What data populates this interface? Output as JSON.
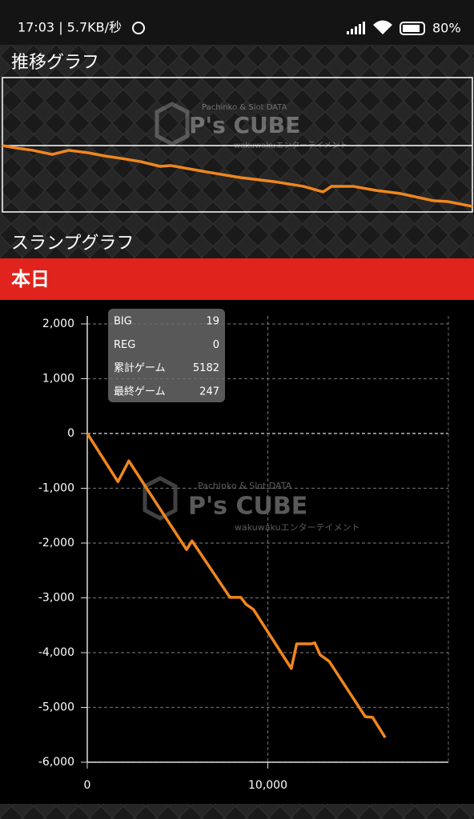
{
  "status_bar": {
    "time_speed": "17:03 | 5.7KB/秒",
    "battery": "80%"
  },
  "sections": {
    "trend_title": "推移グラフ",
    "slump_title": "スランプグラフ",
    "today": "本日"
  },
  "watermark": {
    "top": "Pachinko & Slot DATA",
    "brand": "P's CUBE",
    "sub": "wakuwakuエンターテイメント"
  },
  "info": {
    "rows": [
      [
        "BIG",
        "19"
      ],
      [
        "REG",
        "0"
      ],
      [
        "累計ゲーム",
        "5182"
      ],
      [
        "最終ゲーム",
        "247"
      ]
    ]
  },
  "chart_data": [
    {
      "type": "line",
      "color": "#f0861e",
      "x": [
        0,
        500,
        1100,
        1800,
        2400,
        3100,
        3700,
        4300,
        5000,
        5700,
        6100,
        7400,
        8600,
        9800,
        10900,
        11600,
        11900,
        12700,
        13500,
        14400,
        15600,
        16100,
        17000
      ],
      "series": [
        {
          "color": "#f0861e",
          "values": [
            0,
            -220,
            -430,
            -800,
            -430,
            -650,
            -940,
            -1160,
            -1450,
            -1880,
            -1810,
            -2390,
            -2890,
            -3250,
            -3690,
            -4190,
            -3690,
            -3690,
            -4050,
            -4340,
            -4990,
            -5060,
            -5500
          ]
        }
      ],
      "xlim": [
        0,
        17000
      ],
      "ylim": [
        -6000,
        6000
      ]
    },
    {
      "type": "line",
      "color": "#f0861e",
      "x": [
        0,
        1700,
        2300,
        5500,
        5800,
        7900,
        8500,
        8800,
        9200,
        11300,
        11600,
        12400,
        12600,
        12900,
        13400,
        15400,
        15800,
        16500
      ],
      "series": [
        {
          "color": "#f0861e",
          "values": [
            0,
            -880,
            -500,
            -2120,
            -1960,
            -2990,
            -2990,
            -3120,
            -3210,
            -4290,
            -3840,
            -3840,
            -3820,
            -4040,
            -4160,
            -5170,
            -5180,
            -5550
          ]
        }
      ],
      "xlim": [
        0,
        20000
      ],
      "ylim": [
        -6000,
        2000
      ],
      "xticks": [
        0,
        {
          "value": 10000,
          "label": "10,000"
        }
      ],
      "yticks": [
        {
          "value": -6000,
          "label": "-6,000"
        },
        {
          "value": -5000,
          "label": "-5,000"
        },
        {
          "value": -4000,
          "label": "-4,000"
        },
        {
          "value": -3000,
          "label": "-3,000"
        },
        {
          "value": -2000,
          "label": "-2,000"
        },
        {
          "value": -1000,
          "label": "-1,000"
        },
        0,
        {
          "value": 1000,
          "label": "1,000"
        },
        {
          "value": 2000,
          "label": "2,000"
        }
      ],
      "grid": true
    }
  ]
}
